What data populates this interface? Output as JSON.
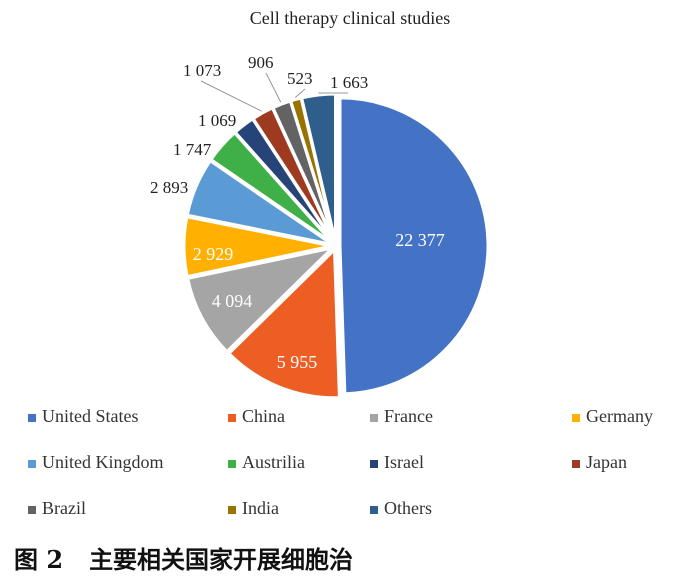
{
  "chart_data": {
    "type": "pie",
    "title": "Cell therapy clinical studies",
    "slices": [
      {
        "label": "United States",
        "value": 22377,
        "display": "22 377",
        "color": "#4472C4"
      },
      {
        "label": "China",
        "value": 5955,
        "display": "5 955",
        "color": "#ED5E24"
      },
      {
        "label": "France",
        "value": 4094,
        "display": "4 094",
        "color": "#A5A5A5"
      },
      {
        "label": "Germany",
        "value": 2929,
        "display": "2 929",
        "color": "#FFB000"
      },
      {
        "label": "United Kingdom",
        "value": 2893,
        "display": "2 893",
        "color": "#5B9BD5"
      },
      {
        "label": "Austrilia",
        "value": 1747,
        "display": "1 747",
        "color": "#3FAF47"
      },
      {
        "label": "Israel",
        "value": 1069,
        "display": "1 069",
        "color": "#264478"
      },
      {
        "label": "Japan",
        "value": 1073,
        "display": "1 073",
        "color": "#9E3A1F"
      },
      {
        "label": "Brazil",
        "value": 906,
        "display": "906",
        "color": "#636363"
      },
      {
        "label": "India",
        "value": 523,
        "display": "523",
        "color": "#997300"
      },
      {
        "label": "Others",
        "value": 1663,
        "display": "1 663",
        "color": "#2F5D8C"
      }
    ],
    "legend_position": "bottom"
  },
  "caption": {
    "number": "图 2",
    "text": "主要相关国家开展细胞治"
  }
}
